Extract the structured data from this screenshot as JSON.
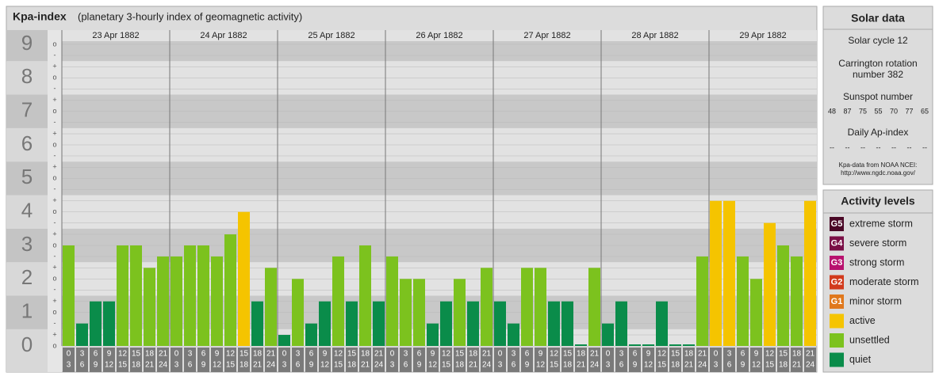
{
  "chart_data": {
    "type": "bar",
    "title": "Kpa-index",
    "subtitle": "(planetary 3-hourly index of geomagnetic activity)",
    "days": [
      "23 Apr 1882",
      "24 Apr 1882",
      "25 Apr 1882",
      "26 Apr 1882",
      "27 Apr 1882",
      "28 Apr 1882",
      "29 Apr 1882"
    ],
    "hour_labels": [
      [
        "0",
        "3"
      ],
      [
        "3",
        "6"
      ],
      [
        "6",
        "9"
      ],
      [
        "9",
        "12"
      ],
      [
        "12",
        "15"
      ],
      [
        "15",
        "18"
      ],
      [
        "18",
        "21"
      ],
      [
        "21",
        "24"
      ]
    ],
    "values": [
      3,
      0.67,
      1.33,
      1.33,
      3,
      3,
      2.33,
      2.67,
      2.67,
      3,
      3,
      2.67,
      3.33,
      4,
      1.33,
      2.33,
      0.33,
      2,
      0.67,
      1.33,
      2.67,
      1.33,
      3,
      1.33,
      2.67,
      2,
      2,
      0.67,
      1.33,
      2,
      1.33,
      2.33,
      1.33,
      0.67,
      2.33,
      2.33,
      1.33,
      1.33,
      0,
      2.33,
      0.67,
      1.33,
      0,
      0,
      1.33,
      0,
      0,
      2.67,
      4.33,
      4.33,
      2.67,
      2,
      3.67,
      3,
      2.67,
      4.33
    ],
    "colors": [
      "#7cc21e",
      "#0a8c4a",
      "#0a8c4a",
      "#0a8c4a",
      "#7cc21e",
      "#7cc21e",
      "#7cc21e",
      "#7cc21e",
      "#7cc21e",
      "#7cc21e",
      "#7cc21e",
      "#7cc21e",
      "#7cc21e",
      "#f5c400",
      "#0a8c4a",
      "#7cc21e",
      "#0a8c4a",
      "#7cc21e",
      "#0a8c4a",
      "#0a8c4a",
      "#7cc21e",
      "#0a8c4a",
      "#7cc21e",
      "#0a8c4a",
      "#7cc21e",
      "#7cc21e",
      "#7cc21e",
      "#0a8c4a",
      "#0a8c4a",
      "#7cc21e",
      "#0a8c4a",
      "#7cc21e",
      "#0a8c4a",
      "#0a8c4a",
      "#7cc21e",
      "#7cc21e",
      "#0a8c4a",
      "#0a8c4a",
      "#0a8c4a",
      "#7cc21e",
      "#0a8c4a",
      "#0a8c4a",
      "#0a8c4a",
      "#0a8c4a",
      "#0a8c4a",
      "#0a8c4a",
      "#0a8c4a",
      "#7cc21e",
      "#f5c400",
      "#f5c400",
      "#7cc21e",
      "#7cc21e",
      "#f5c400",
      "#7cc21e",
      "#7cc21e",
      "#f5c400"
    ],
    "ylim": [
      0,
      9
    ],
    "yticks": [
      0,
      1,
      2,
      3,
      4,
      5,
      6,
      7,
      8,
      9
    ],
    "minor_ticks": [
      {
        "value": 0,
        "label": "o"
      },
      {
        "value": 0.33,
        "label": "+"
      },
      {
        "value": 0.67,
        "label": "-"
      },
      {
        "value": 1,
        "label": "o"
      },
      {
        "value": 1.33,
        "label": "+"
      },
      {
        "value": 1.67,
        "label": "-"
      },
      {
        "value": 2,
        "label": "o"
      },
      {
        "value": 2.33,
        "label": "+"
      },
      {
        "value": 2.67,
        "label": "-"
      },
      {
        "value": 3,
        "label": "o"
      },
      {
        "value": 3.33,
        "label": "+"
      },
      {
        "value": 3.67,
        "label": "-"
      },
      {
        "value": 4,
        "label": "o"
      },
      {
        "value": 4.33,
        "label": "+"
      },
      {
        "value": 4.67,
        "label": "-"
      },
      {
        "value": 5,
        "label": "o"
      },
      {
        "value": 5.33,
        "label": "+"
      },
      {
        "value": 5.67,
        "label": "-"
      },
      {
        "value": 6,
        "label": "o"
      },
      {
        "value": 6.33,
        "label": "+"
      },
      {
        "value": 6.67,
        "label": "-"
      },
      {
        "value": 7,
        "label": "o"
      },
      {
        "value": 7.33,
        "label": "+"
      },
      {
        "value": 7.67,
        "label": "-"
      },
      {
        "value": 8,
        "label": "o"
      },
      {
        "value": 8.33,
        "label": "+"
      },
      {
        "value": 8.67,
        "label": "-"
      },
      {
        "value": 9,
        "label": "o"
      }
    ]
  },
  "solar_data": {
    "title": "Solar data",
    "cycle": "Solar cycle 12",
    "carrington": [
      "Carrington rotation",
      "number 382"
    ],
    "sunspot_title": "Sunspot number",
    "sunspots": [
      "48",
      "87",
      "75",
      "55",
      "70",
      "77",
      "65"
    ],
    "ap_title": "Daily Ap-index",
    "ap": [
      "--",
      "--",
      "--",
      "--",
      "--",
      "--",
      "--"
    ],
    "source": [
      "Kpa-data from NOAA NCEI:",
      "http://www.ngdc.noaa.gov/"
    ]
  },
  "activity_levels": {
    "title": "Activity levels",
    "items": [
      {
        "code": "G5",
        "label": "extreme storm",
        "color": "#4a0826"
      },
      {
        "code": "G4",
        "label": "severe storm",
        "color": "#7a0f46"
      },
      {
        "code": "G3",
        "label": "strong storm",
        "color": "#b8116e"
      },
      {
        "code": "G2",
        "label": "moderate storm",
        "color": "#d23a1c"
      },
      {
        "code": "G1",
        "label": "minor storm",
        "color": "#e0781c"
      },
      {
        "label": "active",
        "color": "#f5c400"
      },
      {
        "label": "unsettled",
        "color": "#7cc21e"
      },
      {
        "label": "quiet",
        "color": "#0a8c4a"
      }
    ]
  }
}
